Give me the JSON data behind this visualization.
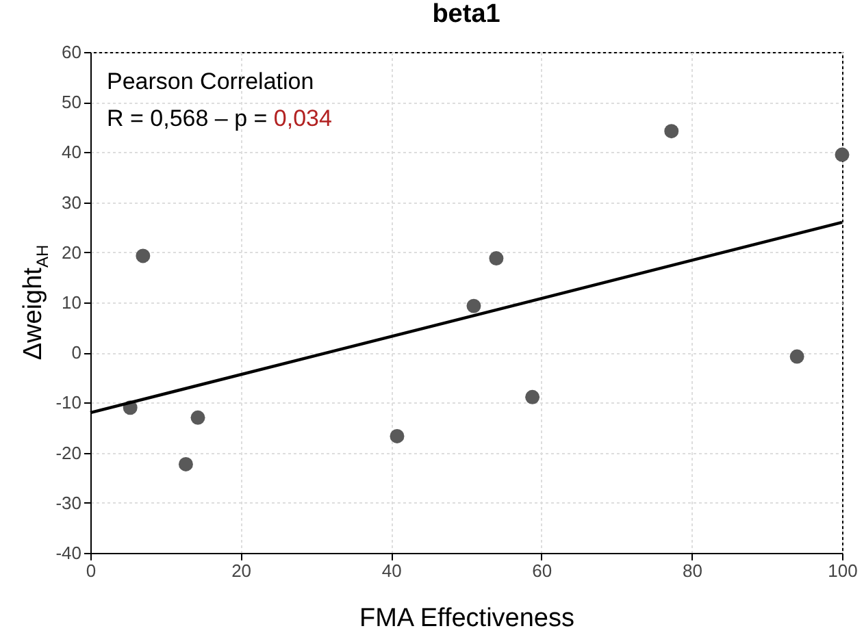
{
  "chart_data": {
    "type": "scatter",
    "title": "beta1",
    "xlabel": "FMA Effectiveness",
    "ylabel": "Δweight$_{AH}$",
    "annotations": [
      "Pearson Correlation",
      "R = 0,568 – p = 0,034"
    ],
    "series": [
      {
        "color": "#595959",
        "marker": "circle",
        "x": [
          5.3,
          7,
          12.7,
          14.3,
          40.8,
          51,
          54,
          58.8,
          77.3,
          94,
          100
        ],
        "values": [
          -11,
          19.3,
          -22.3,
          -13,
          -16.7,
          9.3,
          18.8,
          -8.9,
          44.2,
          -0.8,
          39.5
        ]
      },
      {
        "type": "line",
        "color": "#000000",
        "marker": "none",
        "x": [
          0,
          100
        ],
        "values": [
          -12,
          26
        ]
      }
    ],
    "xlim": [
      0,
      100
    ],
    "xticks": [
      0,
      20,
      40,
      60,
      80,
      100
    ],
    "ylim": [
      -40,
      60
    ],
    "yticks": [
      -40,
      -30,
      -20,
      -10,
      0,
      10,
      20,
      30,
      40,
      50,
      60
    ],
    "grid": true
  }
}
